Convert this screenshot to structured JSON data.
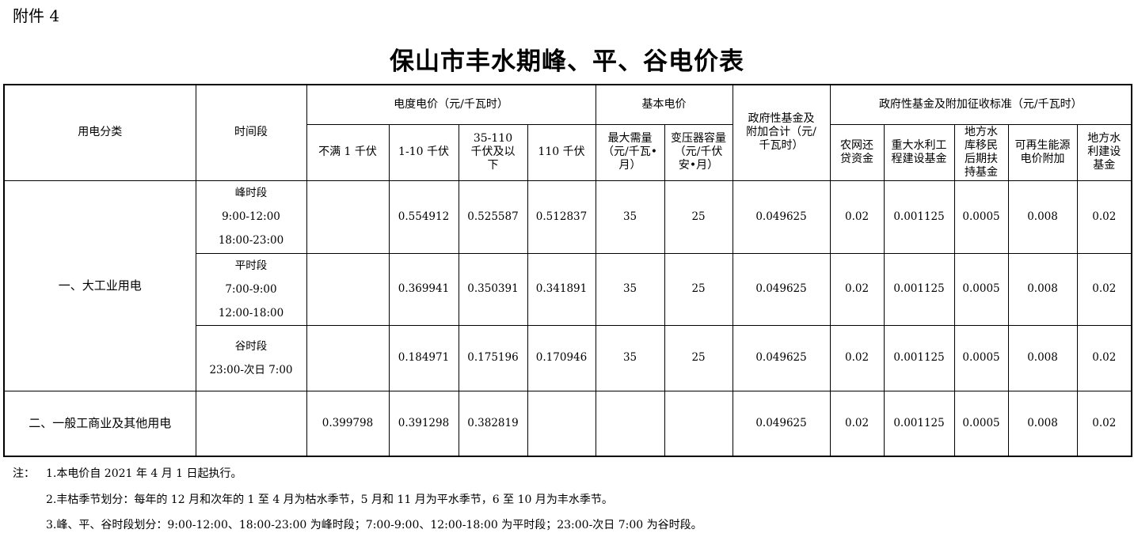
{
  "attachment": "附件 4",
  "title": "保山市丰水期峰、平、谷电价表",
  "header": {
    "category": "用电分类",
    "period": "时间段",
    "energy_price": "电度电价（元/千瓦时）",
    "energy_cols": [
      "不满 1 千伏",
      "1-10 千伏",
      "35-110 千伏及以下",
      "110 千伏"
    ],
    "basic_price": "基本电价",
    "basic_cols": [
      "最大需量（元/千瓦•月）",
      "变压器容量（元/千伏安•月）"
    ],
    "fund_total": "政府性基金及附加合计（元/千瓦时）",
    "fund_std": "政府性基金及附加征收标准（元/千瓦时）",
    "fund_cols": [
      "农网还贷资金",
      "重大水利工程建设基金",
      "地方水库移民后期扶持基金",
      "可再生能源电价附加",
      "地方水利建设基金"
    ]
  },
  "groups": [
    {
      "category": "一、大工业用电",
      "rows": [
        {
          "period": [
            "峰时段",
            "9:00-12:00",
            "18:00-23:00"
          ],
          "values": [
            "",
            "0.554912",
            "0.525587",
            "0.512837",
            "35",
            "25",
            "0.049625",
            "0.02",
            "0.001125",
            "0.0005",
            "0.008",
            "0.02"
          ]
        },
        {
          "period": [
            "平时段",
            "7:00-9:00",
            "12:00-18:00"
          ],
          "values": [
            "",
            "0.369941",
            "0.350391",
            "0.341891",
            "35",
            "25",
            "0.049625",
            "0.02",
            "0.001125",
            "0.0005",
            "0.008",
            "0.02"
          ]
        },
        {
          "period": [
            "谷时段",
            "23:00-次日 7:00"
          ],
          "values": [
            "",
            "0.184971",
            "0.175196",
            "0.170946",
            "35",
            "25",
            "0.049625",
            "0.02",
            "0.001125",
            "0.0005",
            "0.008",
            "0.02"
          ]
        }
      ]
    },
    {
      "category": "二、一般工商业及其他用电",
      "rows": [
        {
          "period": [],
          "values": [
            "0.399798",
            "0.391298",
            "0.382819",
            "",
            "",
            "",
            "0.049625",
            "0.02",
            "0.001125",
            "0.0005",
            "0.008",
            "0.02"
          ]
        }
      ]
    }
  ],
  "notes": {
    "prefix": "注：",
    "items": [
      "1.本电价自 2021 年 4 月 1 日起执行。",
      "2.丰枯季节划分：每年的 12 月和次年的 1 至 4 月为枯水季节，5 月和 11 月为平水季节，6 至 10 月为丰水季节。",
      "3.峰、平、谷时段划分：9:00-12:00、18:00-23:00 为峰时段；7:00-9:00、12:00-18:00 为平时段；23:00-次日 7:00 为谷时段。"
    ]
  }
}
